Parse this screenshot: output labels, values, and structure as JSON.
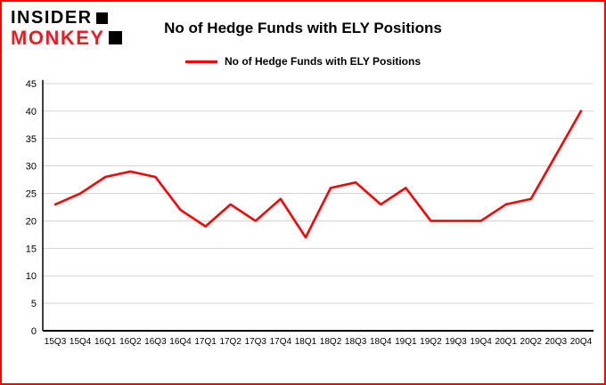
{
  "logo": {
    "line1": "INSIDER",
    "line2": "MONKEY"
  },
  "title": "No of Hedge Funds with ELY Positions",
  "legend": {
    "label": "No of Hedge Funds with ELY Positions"
  },
  "colors": {
    "border": "#ff0000",
    "line": "#ff0000",
    "grid": "#d3d3d3",
    "axis": "#000000",
    "text": "#000000",
    "logo_red": "#ed1c24"
  },
  "chart_data": {
    "type": "line",
    "title": "No of Hedge Funds with ELY Positions",
    "series_name": "No of Hedge Funds with ELY Positions",
    "categories": [
      "15Q3",
      "15Q4",
      "16Q1",
      "16Q2",
      "16Q3",
      "16Q4",
      "17Q1",
      "17Q2",
      "17Q3",
      "17Q4",
      "18Q1",
      "18Q2",
      "18Q3",
      "18Q4",
      "19Q1",
      "19Q2",
      "19Q3",
      "19Q4",
      "20Q1",
      "20Q2",
      "20Q3",
      "20Q4"
    ],
    "values": [
      23,
      25,
      28,
      29,
      28,
      22,
      19,
      23,
      20,
      24,
      17,
      26,
      27,
      23,
      26,
      20,
      20,
      20,
      23,
      24,
      32,
      40
    ],
    "xlabel": "",
    "ylabel": "",
    "ylim": [
      0,
      45
    ],
    "yticks": [
      0,
      5,
      10,
      15,
      20,
      25,
      30,
      35,
      40,
      45
    ],
    "grid": true,
    "legend_position": "top"
  }
}
